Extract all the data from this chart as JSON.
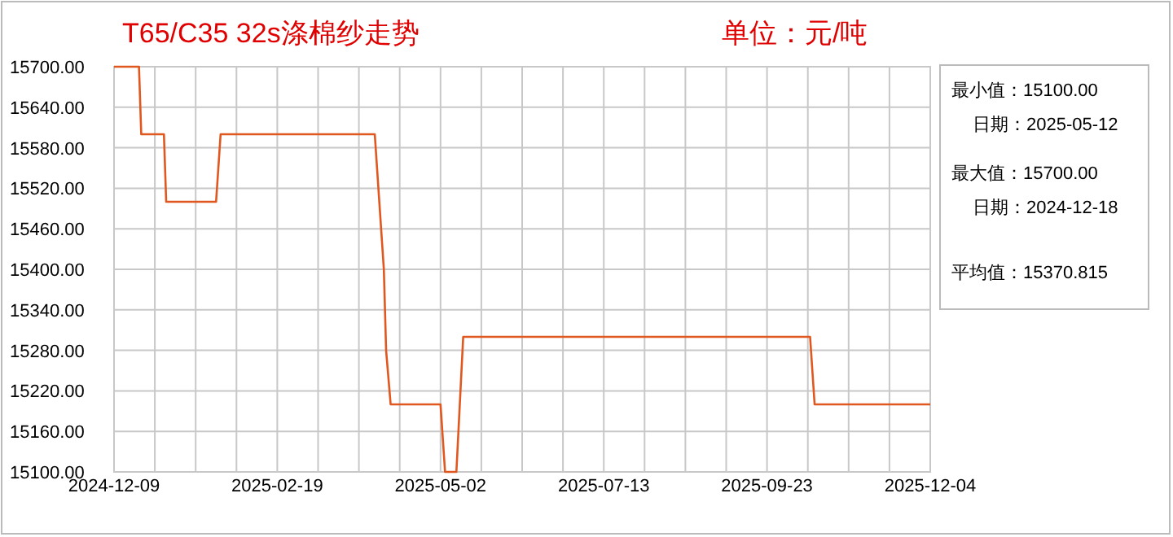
{
  "chart_data": {
    "type": "line",
    "title": "T65/C35 32s涤棉纱走势",
    "subtitle": "单位：元/吨",
    "x": [
      "2024-12-09",
      "2024-12-20",
      "2024-12-21",
      "2024-12-31",
      "2025-01-01",
      "2025-01-23",
      "2025-01-25",
      "2025-04-03",
      "2025-04-07",
      "2025-04-08",
      "2025-04-10",
      "2025-05-02",
      "2025-05-04",
      "2025-05-09",
      "2025-05-12",
      "2025-10-12",
      "2025-10-14",
      "2025-12-04"
    ],
    "series": [
      {
        "color": "#e0581f",
        "values": [
          15700,
          15700,
          15600,
          15600,
          15500,
          15500,
          15600,
          15600,
          15400,
          15280,
          15200,
          15200,
          15100,
          15100,
          15300,
          15300,
          15200,
          15200
        ]
      }
    ],
    "xlim": [
      "2024-12-09",
      "2025-12-04"
    ],
    "xticks": [
      {
        "value": "2024-12-09",
        "label": "2024-12-09"
      },
      {
        "value": "2024-12-27",
        "label": null
      },
      {
        "value": "2025-01-14",
        "label": null
      },
      {
        "value": "2025-02-01",
        "label": null
      },
      {
        "value": "2025-02-19",
        "label": "2025-02-19"
      },
      {
        "value": "2025-03-09",
        "label": null
      },
      {
        "value": "2025-03-27",
        "label": null
      },
      {
        "value": "2025-04-14",
        "label": null
      },
      {
        "value": "2025-05-02",
        "label": "2025-05-02"
      },
      {
        "value": "2025-05-20",
        "label": null
      },
      {
        "value": "2025-06-07",
        "label": null
      },
      {
        "value": "2025-06-25",
        "label": null
      },
      {
        "value": "2025-07-13",
        "label": "2025-07-13"
      },
      {
        "value": "2025-07-31",
        "label": null
      },
      {
        "value": "2025-08-18",
        "label": null
      },
      {
        "value": "2025-09-05",
        "label": null
      },
      {
        "value": "2025-09-23",
        "label": "2025-09-23"
      },
      {
        "value": "2025-10-11",
        "label": null
      },
      {
        "value": "2025-10-29",
        "label": null
      },
      {
        "value": "2025-11-16",
        "label": null
      },
      {
        "value": "2025-12-04",
        "label": "2025-12-04"
      }
    ],
    "ylim": [
      15100,
      15700
    ],
    "yticks": [
      {
        "value": 15100,
        "label": "15100.00"
      },
      {
        "value": 15160,
        "label": "15160.00"
      },
      {
        "value": 15220,
        "label": "15220.00"
      },
      {
        "value": 15280,
        "label": "15280.00"
      },
      {
        "value": 15340,
        "label": "15340.00"
      },
      {
        "value": 15400,
        "label": "15400.00"
      },
      {
        "value": 15460,
        "label": "15460.00"
      },
      {
        "value": 15520,
        "label": "15520.00"
      },
      {
        "value": 15580,
        "label": "15580.00"
      },
      {
        "value": 15640,
        "label": "15640.00"
      },
      {
        "value": 15700,
        "label": "15700.00"
      }
    ],
    "grid": true,
    "annotations": [
      "最小值：15100.00",
      "日期：2025-05-12",
      "最大值：15700.00",
      "日期：2024-12-18",
      "平均值：15370.815"
    ]
  }
}
